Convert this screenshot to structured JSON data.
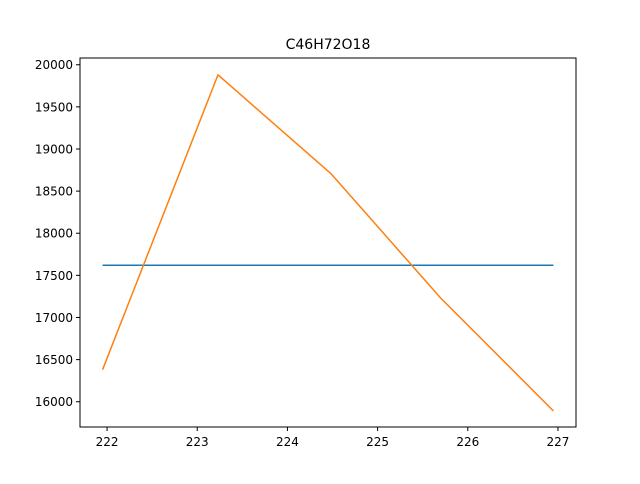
{
  "chart_data": {
    "type": "line",
    "title": "C46H72O18",
    "xlabel": "",
    "ylabel": "",
    "xlim": [
      221.7,
      227.2
    ],
    "ylim": [
      15700,
      20080
    ],
    "xticks": [
      222,
      223,
      224,
      225,
      226,
      227
    ],
    "yticks": [
      16000,
      16500,
      17000,
      17500,
      18000,
      18500,
      19000,
      19500,
      20000
    ],
    "grid": false,
    "legend": "none",
    "series": [
      {
        "color": "#1f77b4",
        "x": [
          221.95,
          226.95
        ],
        "y": [
          17620,
          17620
        ]
      },
      {
        "color": "#ff7f0e",
        "x": [
          221.95,
          223.23,
          224.48,
          225.7,
          226.95
        ],
        "y": [
          16380,
          19880,
          18710,
          17230,
          15890
        ]
      }
    ]
  }
}
